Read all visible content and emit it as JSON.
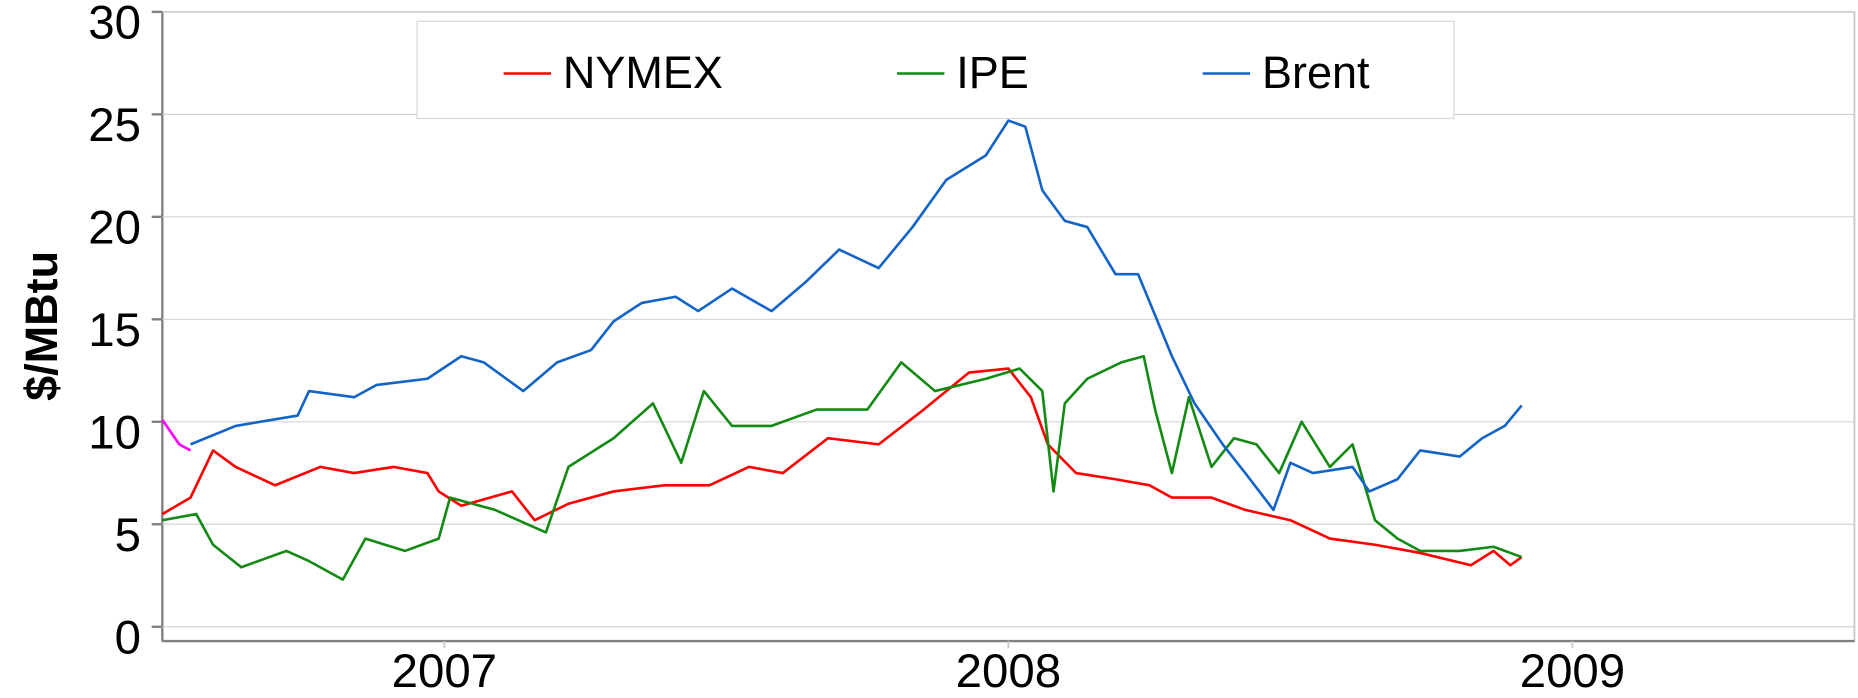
{
  "chart_data": {
    "type": "line",
    "ylabel": "$/MBtu",
    "xlim": [
      2006.5,
      2009.5
    ],
    "xticks": [
      2007,
      2008,
      2009
    ],
    "ylim": [
      -0.7,
      30
    ],
    "yticks": [
      0,
      5,
      10,
      15,
      20,
      25,
      30
    ],
    "grid": true,
    "legend": "top",
    "series": [
      {
        "name": "NYMEX",
        "color": "#ff0000",
        "x": [
          2006.5,
          2006.55,
          2006.59,
          2006.63,
          2006.7,
          2006.78,
          2006.84,
          2006.91,
          2006.97,
          2006.99,
          2007.03,
          2007.12,
          2007.16,
          2007.22,
          2007.3,
          2007.39,
          2007.47,
          2007.54,
          2007.6,
          2007.68,
          2007.77,
          2007.85,
          2007.93,
          2008.0,
          2008.04,
          2008.07,
          2008.12,
          2008.19,
          2008.25,
          2008.29,
          2008.36,
          2008.42,
          2008.5,
          2008.57,
          2008.65,
          2008.73,
          2008.82,
          2008.86,
          2008.89,
          2008.91
        ],
        "values": [
          5.5,
          6.3,
          8.6,
          7.8,
          6.9,
          7.8,
          7.5,
          7.8,
          7.5,
          6.6,
          5.9,
          6.6,
          5.2,
          6.0,
          6.6,
          6.9,
          6.9,
          7.8,
          7.5,
          9.2,
          8.9,
          10.6,
          12.4,
          12.6,
          11.2,
          8.9,
          7.5,
          7.2,
          6.9,
          6.3,
          6.3,
          5.7,
          5.2,
          4.3,
          4.0,
          3.6,
          3.0,
          3.7,
          3.0,
          3.4
        ]
      },
      {
        "name": "IPE",
        "color": "#138a13",
        "x": [
          2006.5,
          2006.56,
          2006.59,
          2006.64,
          2006.72,
          2006.76,
          2006.82,
          2006.86,
          2006.93,
          2006.99,
          2007.01,
          2007.09,
          2007.18,
          2007.22,
          2007.3,
          2007.37,
          2007.42,
          2007.46,
          2007.51,
          2007.58,
          2007.66,
          2007.75,
          2007.81,
          2007.87,
          2007.96,
          2008.02,
          2008.06,
          2008.08,
          2008.1,
          2008.14,
          2008.2,
          2008.24,
          2008.26,
          2008.29,
          2008.32,
          2008.36,
          2008.4,
          2008.44,
          2008.48,
          2008.52,
          2008.57,
          2008.61,
          2008.65,
          2008.69,
          2008.73,
          2008.8,
          2008.86,
          2008.91
        ],
        "values": [
          5.2,
          5.5,
          4.0,
          2.9,
          3.7,
          3.2,
          2.3,
          4.3,
          3.7,
          4.3,
          6.3,
          5.7,
          4.6,
          7.8,
          9.2,
          10.9,
          8.0,
          11.5,
          9.8,
          9.8,
          10.6,
          10.6,
          12.9,
          11.5,
          12.1,
          12.6,
          11.5,
          6.6,
          10.9,
          12.1,
          12.9,
          13.2,
          10.6,
          7.5,
          11.2,
          7.8,
          9.2,
          8.9,
          7.5,
          10.0,
          7.8,
          8.9,
          5.2,
          4.3,
          3.7,
          3.7,
          3.9,
          3.4
        ]
      },
      {
        "name": "Brent",
        "color": "#1464c8",
        "x": [
          2006.55,
          2006.63,
          2006.74,
          2006.76,
          2006.84,
          2006.88,
          2006.97,
          2007.03,
          2007.07,
          2007.14,
          2007.2,
          2007.26,
          2007.3,
          2007.35,
          2007.41,
          2007.45,
          2007.51,
          2007.58,
          2007.64,
          2007.7,
          2007.77,
          2007.83,
          2007.89,
          2007.96,
          2008.0,
          2008.03,
          2008.06,
          2008.1,
          2008.14,
          2008.19,
          2008.23,
          2008.26,
          2008.29,
          2008.33,
          2008.38,
          2008.42,
          2008.47,
          2008.5,
          2008.54,
          2008.61,
          2008.64,
          2008.69,
          2008.73,
          2008.8,
          2008.84,
          2008.88,
          2008.91
        ],
        "values": [
          8.9,
          9.8,
          10.3,
          11.5,
          11.2,
          11.8,
          12.1,
          13.2,
          12.9,
          11.5,
          12.9,
          13.5,
          14.9,
          15.8,
          16.1,
          15.4,
          16.5,
          15.4,
          16.8,
          18.4,
          17.5,
          19.5,
          21.8,
          23.0,
          24.7,
          24.4,
          21.3,
          19.8,
          19.5,
          17.2,
          17.2,
          15.2,
          13.2,
          10.9,
          8.9,
          7.5,
          5.7,
          8.0,
          7.5,
          7.8,
          6.6,
          7.2,
          8.6,
          8.3,
          9.2,
          9.8,
          10.8
        ]
      },
      {
        "color": "#ff00ff",
        "x": [
          2006.5,
          2006.53,
          2006.55
        ],
        "values": [
          10.1,
          8.9,
          8.6
        ]
      }
    ]
  }
}
